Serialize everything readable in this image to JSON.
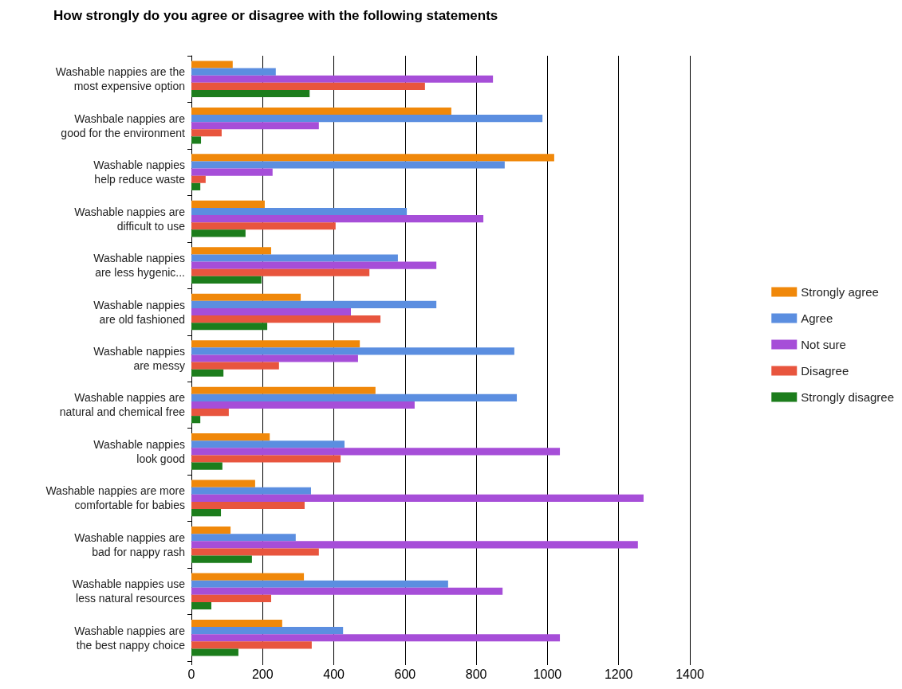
{
  "chart_data": {
    "type": "bar",
    "orientation": "horizontal",
    "title": "How strongly do you agree or disagree with the following statements",
    "categories": [
      "Washable nappies are the\nmost expensive option",
      "Washbale nappies are\ngood for the environment",
      "Washable nappies\nhelp reduce waste",
      "Washable nappies are\ndifficult to use",
      "Washable nappies\nare less hygenic...",
      "Washable nappies\nare old fashioned",
      "Washable nappies\nare messy",
      "Washable nappies are\nnatural and chemical free",
      "Washable nappies\nlook good",
      "Washable nappies are more\ncomfortable for babies",
      "Washable nappies are\nbad for nappy rash",
      "Washable nappies use\nless natural resources",
      "Washable nappies are\nthe best nappy choice"
    ],
    "series": [
      {
        "name": "Strongly agree",
        "color": "#f0880a",
        "values": [
          116,
          730,
          1019,
          206,
          224,
          307,
          473,
          517,
          220,
          179,
          110,
          316,
          255
        ]
      },
      {
        "name": "Agree",
        "color": "#5b8ee0",
        "values": [
          237,
          986,
          880,
          605,
          580,
          688,
          907,
          914,
          430,
          336,
          293,
          721,
          426
        ]
      },
      {
        "name": "Not sure",
        "color": "#a64ed8",
        "values": [
          847,
          358,
          228,
          820,
          688,
          448,
          468,
          627,
          1035,
          1270,
          1254,
          874,
          1035
        ]
      },
      {
        "name": "Disagree",
        "color": "#e8553e",
        "values": [
          656,
          85,
          40,
          405,
          500,
          531,
          246,
          105,
          419,
          318,
          358,
          224,
          338
        ]
      },
      {
        "name": "Strongly disagree",
        "color": "#1c7d1c",
        "values": [
          332,
          27,
          25,
          152,
          197,
          213,
          90,
          25,
          87,
          83,
          170,
          56,
          132
        ]
      }
    ],
    "xlim": [
      0,
      1400
    ],
    "xticks": [
      0,
      200,
      400,
      600,
      800,
      1000,
      1200,
      1400
    ],
    "grid": "x",
    "legend": "right"
  }
}
